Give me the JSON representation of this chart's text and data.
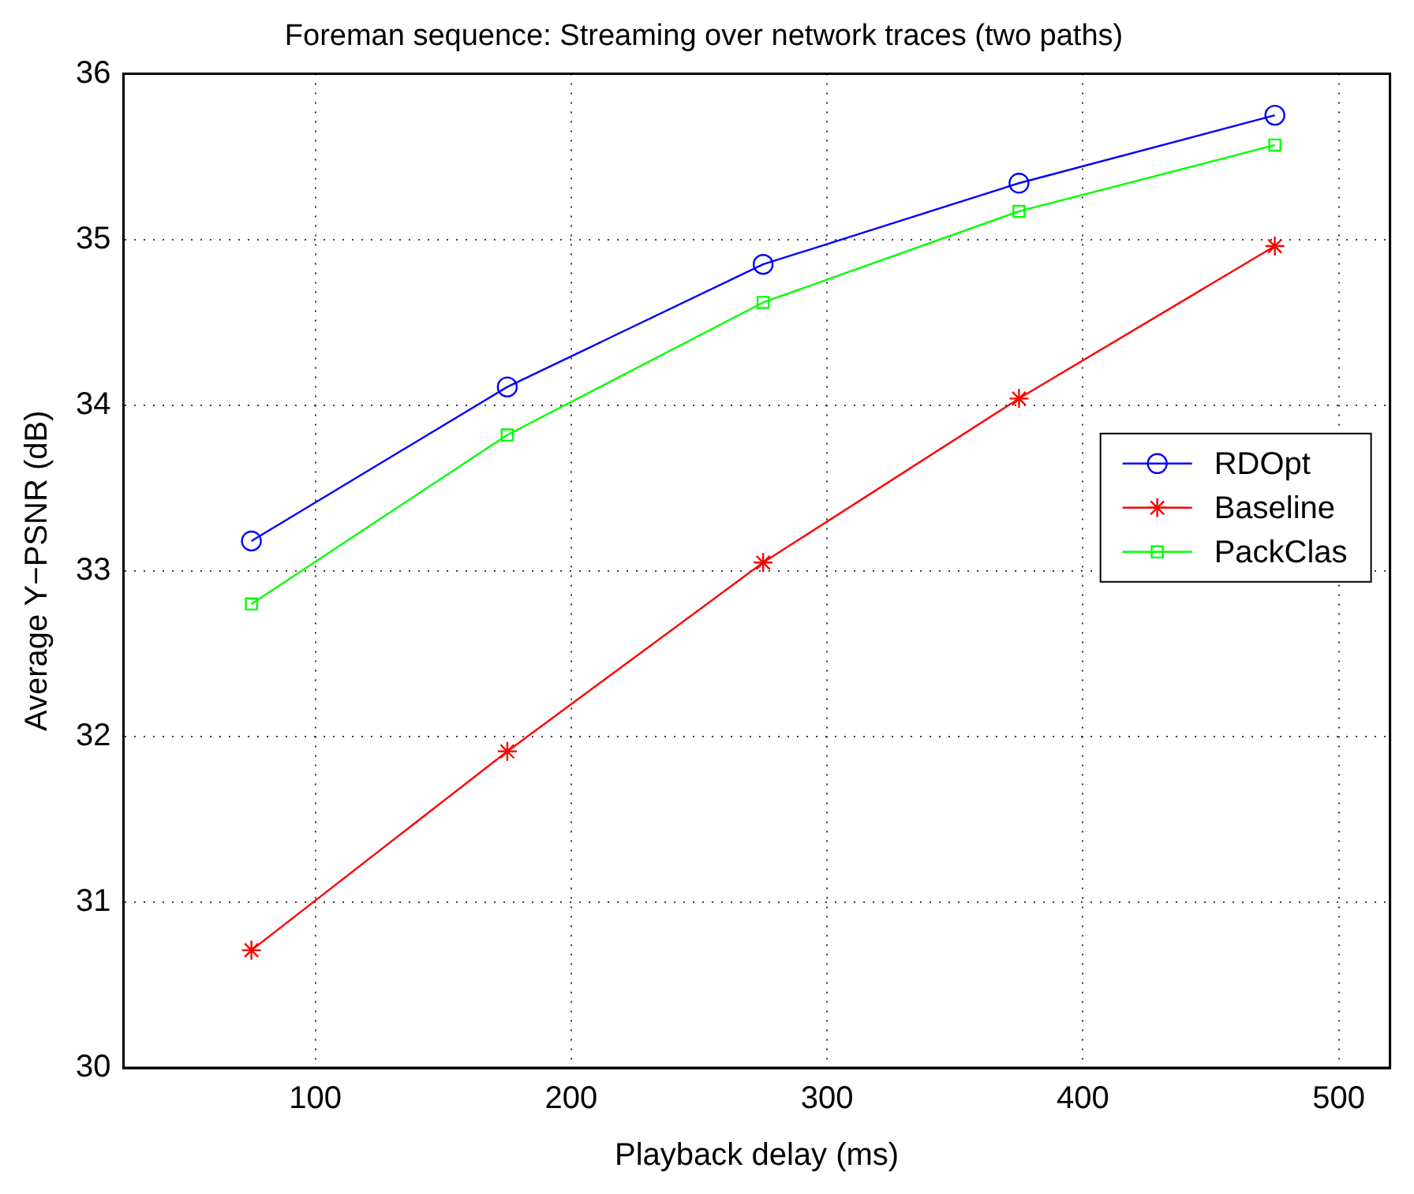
{
  "chart_data": {
    "type": "line",
    "title": "Foreman sequence: Streaming over network traces (two paths)",
    "xlabel": "Playback delay (ms)",
    "ylabel": "Average Y−PSNR (dB)",
    "x": [
      75,
      175,
      275,
      375,
      475
    ],
    "series": [
      {
        "name": "RDOpt",
        "color": "#0000ff",
        "marker": "circle",
        "values": [
          33.18,
          34.11,
          34.85,
          35.34,
          35.75
        ]
      },
      {
        "name": "Baseline",
        "color": "#ff0000",
        "marker": "cross",
        "values": [
          30.71,
          31.91,
          33.05,
          34.04,
          34.96
        ]
      },
      {
        "name": "PackClas",
        "color": "#00ff00",
        "marker": "square",
        "values": [
          32.8,
          33.82,
          34.62,
          35.17,
          35.57
        ]
      }
    ],
    "xlim": [
      25,
      520
    ],
    "xticks": [
      100,
      200,
      300,
      400,
      500
    ],
    "ylim": [
      30,
      36
    ],
    "yticks": [
      30,
      31,
      32,
      33,
      34,
      35,
      36
    ],
    "grid": true,
    "legend": "right",
    "line_style": "solid"
  }
}
